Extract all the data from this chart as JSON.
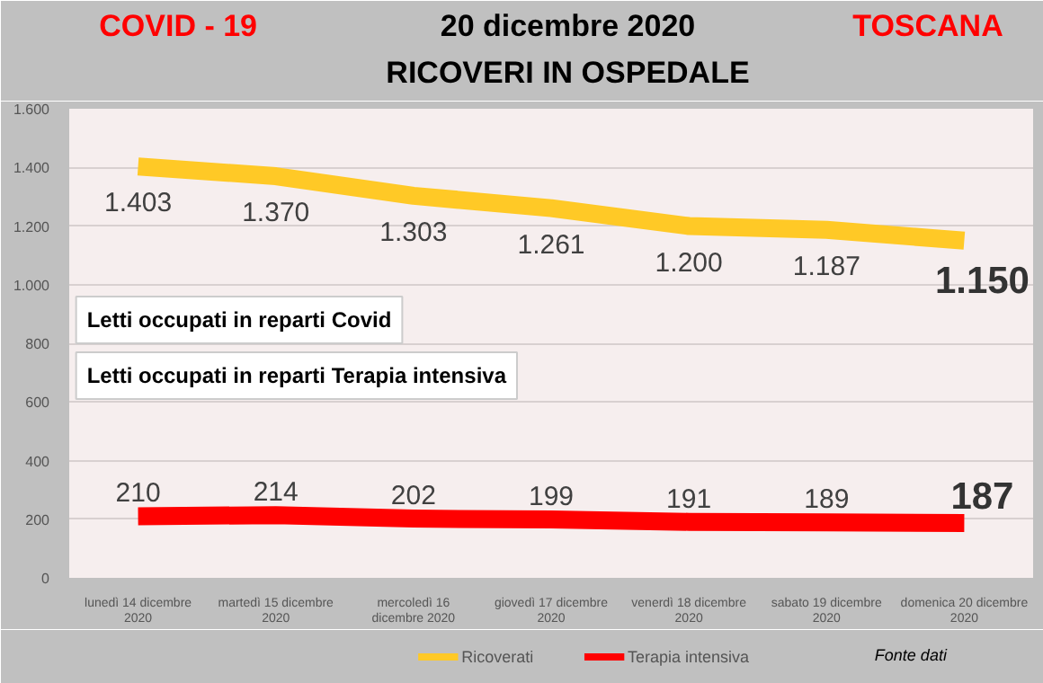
{
  "chart_data": {
    "type": "line",
    "title": "20 dicembre 2020",
    "subtitle": "RICOVERI IN OSPEDALE",
    "categories": [
      "lunedì 14 dicembre 2020",
      "martedì 15 dicembre 2020",
      "mercoledì 16 dicembre 2020",
      "giovedì 17 dicembre 2020",
      "venerdì 18 dicembre 2020",
      "sabato 19 dicembre 2020",
      "domenica 20 dicembre 2020"
    ],
    "series": [
      {
        "name": "Ricoverati",
        "color": "#ffc926",
        "values": [
          1403,
          1370,
          1303,
          1261,
          1200,
          1187,
          1150
        ],
        "value_labels": [
          "1.403",
          "1.370",
          "1.303",
          "1.261",
          "1.200",
          "1.187",
          "1.150"
        ]
      },
      {
        "name": "Terapia intensiva",
        "color": "#ff0000",
        "values": [
          210,
          214,
          202,
          199,
          191,
          189,
          187
        ],
        "value_labels": [
          "210",
          "214",
          "202",
          "199",
          "191",
          "189",
          "187"
        ]
      }
    ],
    "ylim": [
      0,
      1600
    ],
    "yticks": [
      0,
      200,
      400,
      600,
      800,
      {
        "value": 1000,
        "label": "1.000"
      },
      {
        "value": 1200,
        "label": "1.200"
      },
      {
        "value": 1400,
        "label": "1.400"
      },
      {
        "value": 1600,
        "label": "1.600"
      }
    ],
    "grid": "y",
    "legend": "bottom",
    "marker": "none",
    "line_style": "solid",
    "annotations": [
      "COVID - 19",
      "TOSCANA",
      "Letti occupati in reparti Covid",
      "Letti occupati in reparti Terapia intensiva",
      "Fonte dati"
    ]
  }
}
